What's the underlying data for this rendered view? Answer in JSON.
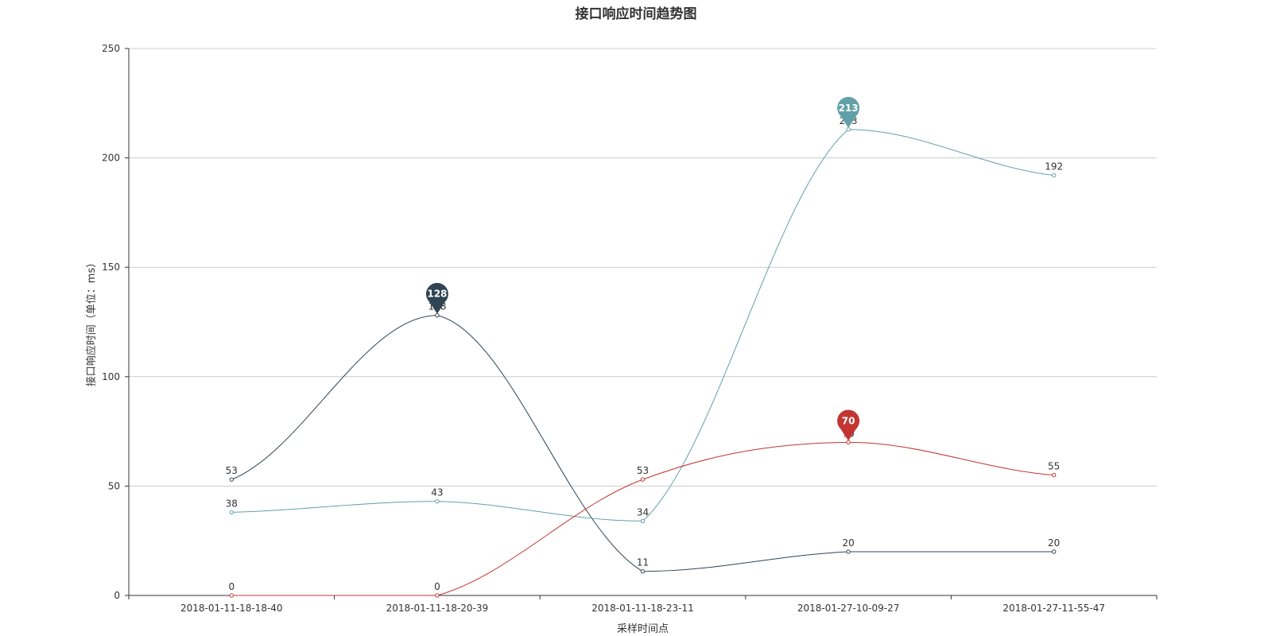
{
  "chart_data": {
    "type": "line",
    "title": "接口响应时间趋势图",
    "xlabel": "采样时间点",
    "ylabel": "接口响应时间（单位：ms）",
    "categories": [
      "2018-01-11-18-18-40",
      "2018-01-11-18-20-39",
      "2018-01-11-18-23-11",
      "2018-01-27-10-09-27",
      "2018-01-27-11-55-47"
    ],
    "ylim": [
      0,
      250
    ],
    "yticks": [
      0,
      50,
      100,
      150,
      200,
      250
    ],
    "grid": true,
    "smooth": true,
    "series": [
      {
        "values": [
          53,
          128,
          11,
          20,
          20
        ],
        "color": "#2f4554",
        "max_marker": 128
      },
      {
        "values": [
          38,
          43,
          34,
          213,
          192
        ],
        "color": "#61a0a8",
        "max_marker": 213
      },
      {
        "values": [
          0,
          0,
          53,
          70,
          55
        ],
        "color": "#c23531",
        "max_marker": 70
      }
    ]
  }
}
